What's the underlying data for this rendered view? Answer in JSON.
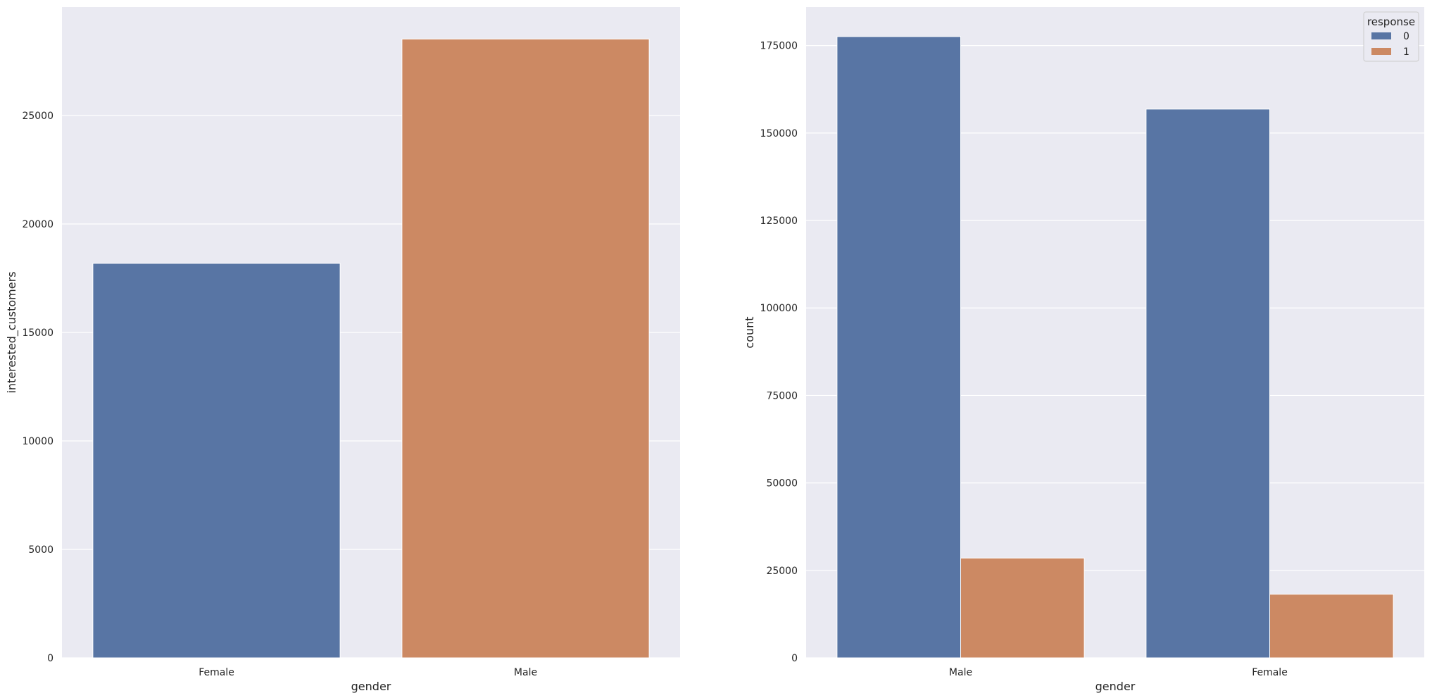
{
  "colors": {
    "background": "#eaeaf2",
    "grid": "#ffffff",
    "blue": "#5875a4",
    "orange": "#cc8963"
  },
  "chart_data": [
    {
      "type": "bar",
      "categories": [
        "Female",
        "Male"
      ],
      "values": [
        18185,
        28525
      ],
      "bar_colors": [
        "#5875a4",
        "#cc8963"
      ],
      "xlabel": "gender",
      "ylabel": "interested_customers",
      "ylim": [
        0,
        30000
      ],
      "yticks": [
        0,
        5000,
        10000,
        15000,
        20000,
        25000
      ],
      "grid": true
    },
    {
      "type": "bar",
      "categories": [
        "Male",
        "Female"
      ],
      "series": [
        {
          "name": "0",
          "values": [
            177564,
            156835
          ],
          "color": "#5875a4"
        },
        {
          "name": "1",
          "values": [
            28525,
            18185
          ],
          "color": "#cc8963"
        }
      ],
      "xlabel": "gender",
      "ylabel": "count",
      "ylim": [
        0,
        186000
      ],
      "yticks": [
        0,
        25000,
        50000,
        75000,
        100000,
        125000,
        150000,
        175000
      ],
      "legend": {
        "title": "response",
        "placement": "top-right"
      },
      "grid": true
    }
  ]
}
